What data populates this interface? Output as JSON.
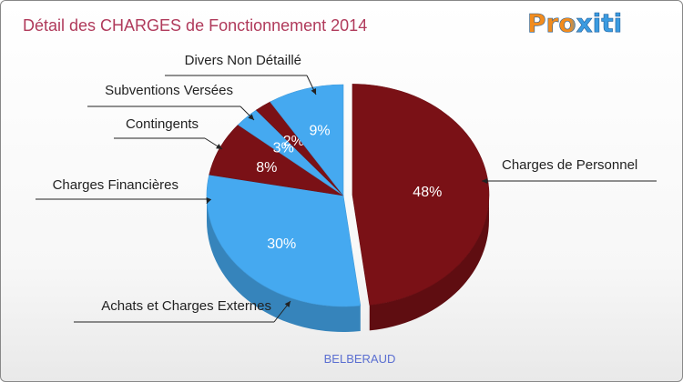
{
  "chart_data": {
    "type": "pie",
    "title": "Détail des CHARGES de Fonctionnement 2014",
    "subtitle": "BELBERAUD",
    "brand": "Proxiti",
    "colors": {
      "title": "#b03a5b",
      "dark": "#7a1116",
      "light": "#45a9f0",
      "subtitle": "#5b6fd1"
    },
    "slices": [
      {
        "label": "Charges de Personnel",
        "value": 48,
        "display": "48%",
        "color": "dark"
      },
      {
        "label": "Achats et Charges Externes",
        "value": 30,
        "display": "30%",
        "color": "light"
      },
      {
        "label": "Charges Financières",
        "value": 8,
        "display": "8%",
        "color": "dark"
      },
      {
        "label": "Contingents",
        "value": 3,
        "display": "3%",
        "color": "light"
      },
      {
        "label": "Subventions Versées",
        "value": 2,
        "display": "2%",
        "color": "dark"
      },
      {
        "label": "Divers Non Détaillé",
        "value": 9,
        "display": "9%",
        "color": "light"
      }
    ]
  }
}
